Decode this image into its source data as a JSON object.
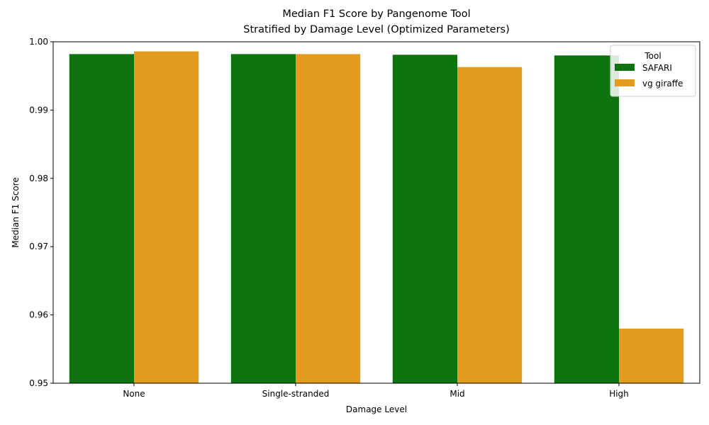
{
  "chart_data": {
    "type": "bar",
    "title": "Median F1 Score by Pangenome Tool",
    "subtitle": "Stratified by Damage Level (Optimized Parameters)",
    "xlabel": "Damage Level",
    "ylabel": "Median F1 Score",
    "categories": [
      "None",
      "Single-stranded",
      "Mid",
      "High"
    ],
    "ylim": [
      0.95,
      1.0
    ],
    "yticks": [
      "0.95",
      "0.96",
      "0.97",
      "0.98",
      "0.99",
      "1.00"
    ],
    "ytick_values": [
      0.95,
      0.96,
      0.97,
      0.98,
      0.99,
      1.0
    ],
    "grid": false,
    "legend": {
      "title": "Tool",
      "placement": "top-right"
    },
    "series": [
      {
        "name": "SAFARI",
        "color": "#0e720e",
        "values": [
          0.9982,
          0.9982,
          0.9981,
          0.998
        ]
      },
      {
        "name": "vg giraffe",
        "color": "#e39c1e",
        "values": [
          0.9986,
          0.9982,
          0.9963,
          0.958
        ]
      }
    ]
  }
}
